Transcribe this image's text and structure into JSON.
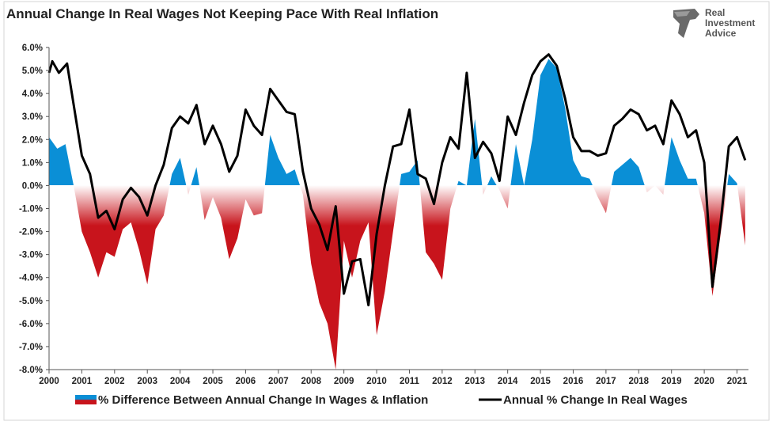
{
  "chart_data": {
    "type": "area",
    "title": "Annual Change In Real Wages Not Keeping Pace With Real Inflation",
    "xlabel": "",
    "ylabel": "",
    "ylim": [
      -8,
      6
    ],
    "xlim": [
      2000,
      2021.35
    ],
    "x_tick_labels": [
      "2000",
      "2001",
      "2002",
      "2003",
      "2004",
      "2005",
      "2006",
      "2007",
      "2008",
      "2009",
      "2010",
      "2011",
      "2012",
      "2013",
      "2014",
      "2015",
      "2016",
      "2017",
      "2018",
      "2019",
      "2020",
      "2021"
    ],
    "y_tick_labels": [
      "6.0%",
      "5.0%",
      "4.0%",
      "3.0%",
      "2.0%",
      "1.0%",
      "0.0%",
      "-1.0%",
      "-2.0%",
      "-3.0%",
      "-4.0%",
      "-5.0%",
      "-6.0%",
      "-7.0%",
      "-8.0%"
    ],
    "grid": false,
    "legend_position": "bottom",
    "series": [
      {
        "name": "% Difference Between Annual Change In Wages & Inflation",
        "style": "area",
        "positive_color": "#0a8fd6",
        "negative_color": "#c8141c",
        "x": [
          2000,
          2000.25,
          2000.5,
          2000.75,
          2001,
          2001.25,
          2001.5,
          2001.75,
          2002,
          2002.25,
          2002.5,
          2002.75,
          2003,
          2003.25,
          2003.5,
          2003.75,
          2004,
          2004.25,
          2004.5,
          2004.75,
          2005,
          2005.25,
          2005.5,
          2005.75,
          2006,
          2006.25,
          2006.5,
          2006.75,
          2007,
          2007.25,
          2007.5,
          2007.75,
          2008,
          2008.25,
          2008.5,
          2008.75,
          2009,
          2009.25,
          2009.5,
          2009.75,
          2010,
          2010.25,
          2010.5,
          2010.75,
          2011,
          2011.25,
          2011.5,
          2011.75,
          2012,
          2012.25,
          2012.5,
          2012.75,
          2013,
          2013.25,
          2013.5,
          2013.75,
          2014,
          2014.25,
          2014.5,
          2014.75,
          2015,
          2015.25,
          2015.5,
          2015.75,
          2016,
          2016.25,
          2016.5,
          2016.75,
          2017,
          2017.25,
          2017.5,
          2017.75,
          2018,
          2018.25,
          2018.5,
          2018.75,
          2019,
          2019.25,
          2019.5,
          2019.75,
          2020,
          2020.25,
          2020.5,
          2020.75,
          2021,
          2021.25
        ],
        "values": [
          2.1,
          1.6,
          1.8,
          0.0,
          -2.0,
          -2.9,
          -4.0,
          -2.9,
          -3.1,
          -1.9,
          -1.6,
          -2.8,
          -4.3,
          -1.9,
          -1.3,
          0.5,
          1.2,
          -0.4,
          0.8,
          -1.5,
          -0.5,
          -1.4,
          -3.2,
          -2.3,
          -0.6,
          -1.3,
          -1.2,
          2.2,
          1.2,
          0.5,
          0.7,
          -0.4,
          -3.4,
          -5.1,
          -6.0,
          -8.0,
          -2.4,
          -4.0,
          -2.4,
          -1.6,
          -6.5,
          -4.6,
          -2.0,
          0.5,
          0.6,
          1.1,
          -2.9,
          -3.4,
          -4.1,
          -1.0,
          0.2,
          0.0,
          2.9,
          -0.4,
          0.4,
          -0.2,
          -1.0,
          1.8,
          0.0,
          2.0,
          4.8,
          5.5,
          5.1,
          3.4,
          1.1,
          0.4,
          0.3,
          -0.5,
          -1.2,
          0.6,
          0.9,
          1.2,
          0.8,
          -0.3,
          0.0,
          -0.4,
          2.1,
          1.1,
          0.3,
          0.3,
          -1.2,
          -4.8,
          -2.1,
          0.5,
          0.1,
          -2.6
        ]
      },
      {
        "name": "Annual % Change In Real Wages",
        "style": "line",
        "color": "#000000",
        "x": [
          2000,
          2000.1,
          2000.3,
          2000.55,
          2001,
          2001.25,
          2001.5,
          2001.75,
          2002,
          2002.25,
          2002.5,
          2002.75,
          2003,
          2003.25,
          2003.5,
          2003.75,
          2004,
          2004.25,
          2004.5,
          2004.75,
          2005,
          2005.25,
          2005.5,
          2005.75,
          2006,
          2006.25,
          2006.5,
          2006.75,
          2007,
          2007.25,
          2007.5,
          2007.75,
          2008,
          2008.25,
          2008.5,
          2008.75,
          2009,
          2009.25,
          2009.5,
          2009.75,
          2010,
          2010.25,
          2010.5,
          2010.75,
          2011,
          2011.25,
          2011.5,
          2011.75,
          2012,
          2012.25,
          2012.5,
          2012.75,
          2013,
          2013.25,
          2013.5,
          2013.75,
          2014,
          2014.25,
          2014.5,
          2014.75,
          2015,
          2015.25,
          2015.5,
          2015.75,
          2016,
          2016.25,
          2016.5,
          2016.75,
          2017,
          2017.25,
          2017.5,
          2017.75,
          2018,
          2018.25,
          2018.5,
          2018.75,
          2019,
          2019.25,
          2019.5,
          2019.75,
          2020,
          2020.25,
          2020.5,
          2020.75,
          2021,
          2021.25
        ],
        "values": [
          4.9,
          5.4,
          4.9,
          5.3,
          1.3,
          0.5,
          -1.4,
          -1.1,
          -1.9,
          -0.6,
          -0.1,
          -0.5,
          -1.3,
          0.0,
          0.9,
          2.5,
          3.0,
          2.7,
          3.5,
          1.8,
          2.6,
          1.8,
          0.6,
          1.3,
          3.3,
          2.6,
          2.2,
          4.2,
          3.7,
          3.2,
          3.1,
          0.6,
          -1.0,
          -1.7,
          -2.8,
          -0.9,
          -4.7,
          -3.3,
          -3.2,
          -5.2,
          -2.1,
          0.0,
          1.7,
          1.8,
          3.3,
          0.5,
          0.3,
          -0.8,
          1.0,
          2.1,
          1.6,
          4.9,
          1.2,
          1.9,
          1.4,
          0.2,
          3.0,
          2.2,
          3.6,
          4.8,
          5.4,
          5.7,
          5.2,
          3.8,
          2.1,
          1.5,
          1.5,
          1.3,
          1.4,
          2.6,
          2.9,
          3.3,
          3.1,
          2.4,
          2.6,
          1.8,
          3.7,
          3.1,
          2.1,
          2.4,
          1.0,
          -4.4,
          -1.6,
          1.7,
          2.1,
          1.1
        ]
      }
    ]
  },
  "logo": {
    "line1": "Real",
    "line2": "Investment",
    "line3": "Advice"
  }
}
